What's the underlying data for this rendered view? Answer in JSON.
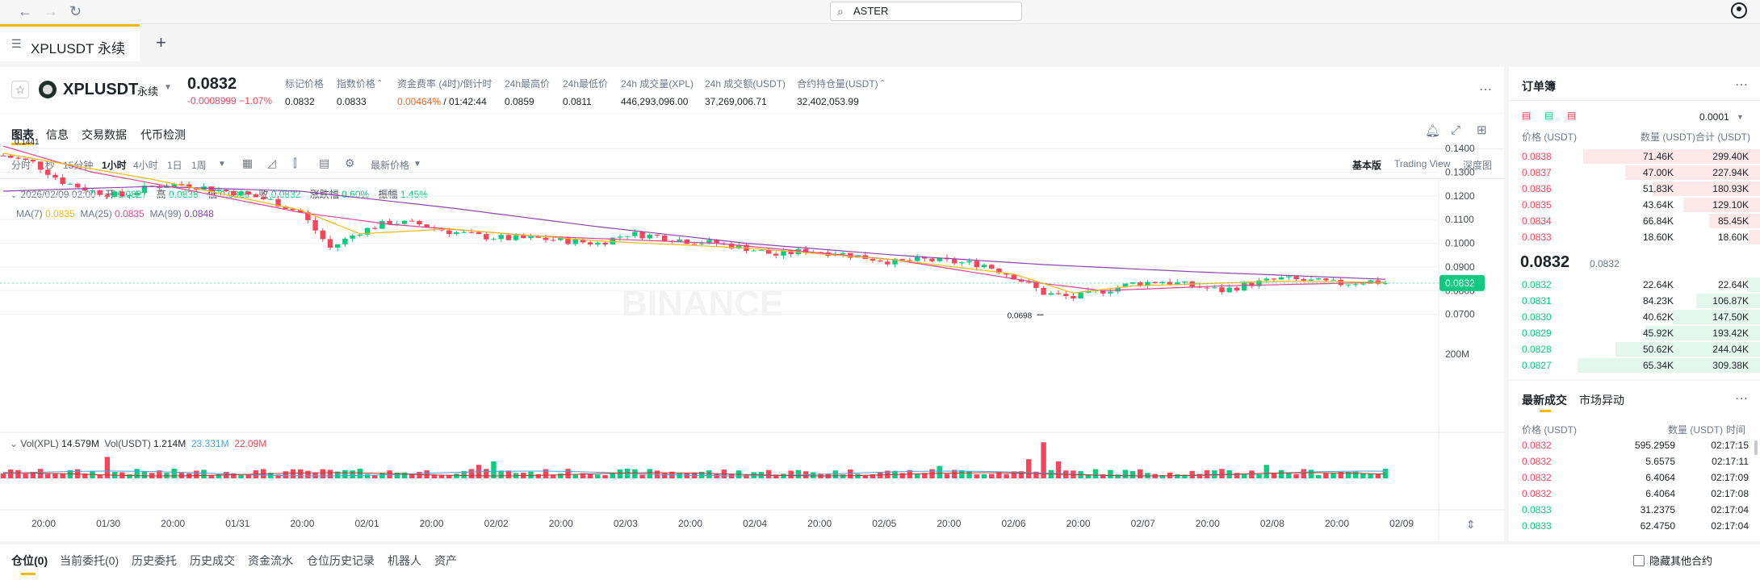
{
  "browser": {
    "url": "ASTER",
    "icons": [
      "back-icon",
      "forward-icon",
      "reload-icon",
      "search-icon",
      "user-icon"
    ]
  },
  "tab": {
    "label": "XPLUSDT 永续",
    "add": "+"
  },
  "header": {
    "symbol": "XPLUSDT",
    "type": "永续",
    "price": "0.0832",
    "change": "-0.0008999 −1.07%",
    "stats": [
      {
        "label": "标记价格",
        "value": "0.0832"
      },
      {
        "label": "指数价格 ˆ",
        "value": "0.0833"
      },
      {
        "label": "资金费率 (4时)/倒计时",
        "value_orange": "0.00464%",
        "value_rest": " / 01:42:44"
      },
      {
        "label": "24h最高价",
        "value": "0.0859"
      },
      {
        "label": "24h最低价",
        "value": "0.0811"
      },
      {
        "label": "24h 成交量(XPL)",
        "value": "446,293,096.00"
      },
      {
        "label": "24h 成交额(USDT)",
        "value": "37,269,006.71"
      },
      {
        "label": "合约持仓量(USDT) ˆ",
        "value": "32,402,053.99"
      }
    ]
  },
  "chart_tabs": [
    "图表",
    "信息",
    "交易数据",
    "代币检测"
  ],
  "intervals": [
    "分时",
    "1秒",
    "15分钟",
    "1小时",
    "4小时",
    "1日",
    "1周"
  ],
  "latest_price_label": "最新价格",
  "views": [
    "基本版",
    "Trading View",
    "深度图"
  ],
  "ohlc": {
    "date": "2026/02/09 02:00",
    "open_l": "开",
    "open": "0.0827",
    "high_l": "高",
    "high": "0.0838",
    "low_l": "低",
    "low": "0.0826",
    "close_l": "收",
    "close": "0.0832",
    "chg_l": "涨跌幅",
    "chg": "0.60%",
    "amp_l": "振幅",
    "amp": "1.45%"
  },
  "ma": {
    "ma7_l": "MA(7)",
    "ma7": "0.0835",
    "ma25_l": "MA(25)",
    "ma25": "0.0835",
    "ma99_l": "MA(99)",
    "ma99": "0.0848"
  },
  "vol": {
    "xpl_l": "Vol(XPL)",
    "xpl": "14.579M",
    "usdt_l": "Vol(USDT)",
    "usdt": "1.214M",
    "v1": "23.331M",
    "v2": "22.09M"
  },
  "chart_data": {
    "type": "candlestick",
    "price_ticks": [
      "0.1400",
      "0.1300",
      "0.1200",
      "0.1100",
      "0.1000",
      "0.0900",
      "0.0800",
      "0.0700"
    ],
    "ylim": [
      0.0658,
      0.1448
    ],
    "x_ticks": [
      "20:00",
      "01/30",
      "20:00",
      "01/31",
      "20:00",
      "02/01",
      "20:00",
      "02/02",
      "20:00",
      "02/03",
      "20:00",
      "02/04",
      "20:00",
      "02/05",
      "20:00",
      "02/06",
      "20:00",
      "02/07",
      "20:00",
      "02/08",
      "20:00",
      "02/09"
    ],
    "close_path": [
      [
        0,
        0.137
      ],
      [
        4,
        0.134
      ],
      [
        8,
        0.126
      ],
      [
        12,
        0.122
      ],
      [
        16,
        0.12
      ],
      [
        20,
        0.124
      ],
      [
        24,
        0.125
      ],
      [
        28,
        0.123
      ],
      [
        32,
        0.121
      ],
      [
        36,
        0.118
      ],
      [
        40,
        0.113
      ],
      [
        44,
        0.098
      ],
      [
        48,
        0.105
      ],
      [
        52,
        0.109
      ],
      [
        56,
        0.108
      ],
      [
        60,
        0.105
      ],
      [
        64,
        0.103
      ],
      [
        68,
        0.102
      ],
      [
        72,
        0.102
      ],
      [
        76,
        0.101
      ],
      [
        80,
        0.1
      ],
      [
        84,
        0.104
      ],
      [
        88,
        0.103
      ],
      [
        92,
        0.101
      ],
      [
        96,
        0.1
      ],
      [
        100,
        0.098
      ],
      [
        104,
        0.095
      ],
      [
        108,
        0.097
      ],
      [
        112,
        0.096
      ],
      [
        116,
        0.094
      ],
      [
        120,
        0.092
      ],
      [
        124,
        0.093
      ],
      [
        128,
        0.092
      ],
      [
        132,
        0.091
      ],
      [
        136,
        0.086
      ],
      [
        140,
        0.079
      ],
      [
        144,
        0.077
      ],
      [
        148,
        0.08
      ],
      [
        152,
        0.083
      ],
      [
        156,
        0.084
      ],
      [
        160,
        0.082
      ],
      [
        164,
        0.08
      ],
      [
        168,
        0.083
      ],
      [
        172,
        0.085
      ],
      [
        176,
        0.084
      ],
      [
        180,
        0.083
      ],
      [
        184,
        0.084
      ],
      [
        186,
        0.0832
      ]
    ],
    "ma7": [
      [
        0,
        0.138
      ],
      [
        20,
        0.127
      ],
      [
        40,
        0.114
      ],
      [
        48,
        0.104
      ],
      [
        60,
        0.106
      ],
      [
        80,
        0.101
      ],
      [
        100,
        0.098
      ],
      [
        120,
        0.093
      ],
      [
        136,
        0.087
      ],
      [
        144,
        0.079
      ],
      [
        152,
        0.082
      ],
      [
        172,
        0.084
      ],
      [
        186,
        0.0835
      ]
    ],
    "ma25": [
      [
        0,
        0.141
      ],
      [
        12,
        0.13
      ],
      [
        24,
        0.123
      ],
      [
        40,
        0.113
      ],
      [
        52,
        0.108
      ],
      [
        72,
        0.103
      ],
      [
        96,
        0.1
      ],
      [
        120,
        0.093
      ],
      [
        140,
        0.083
      ],
      [
        148,
        0.08
      ],
      [
        164,
        0.082
      ],
      [
        186,
        0.0835
      ]
    ],
    "ma99": [
      [
        0,
        0.122
      ],
      [
        20,
        0.124
      ],
      [
        40,
        0.122
      ],
      [
        60,
        0.115
      ],
      [
        80,
        0.107
      ],
      [
        100,
        0.1
      ],
      [
        120,
        0.095
      ],
      [
        140,
        0.091
      ],
      [
        160,
        0.088
      ],
      [
        186,
        0.0848
      ]
    ],
    "low_label": "0.0698",
    "high_label": "0.1441",
    "last_price_tag": "0.0832",
    "volume_ticks": [
      "200M"
    ],
    "volume_spikes": [
      [
        14,
        190
      ],
      [
        64,
        120
      ],
      [
        66,
        150
      ],
      [
        126,
        110
      ],
      [
        138,
        170
      ],
      [
        140,
        320
      ],
      [
        142,
        150
      ],
      [
        170,
        120
      ]
    ]
  },
  "orderbook": {
    "title": "订单簿",
    "precision": "0.0001",
    "cols": [
      "价格 (USDT)",
      "数量 (USDT)",
      "合计 (USDT)"
    ],
    "asks": [
      {
        "p": "0.0838",
        "q": "71.46K",
        "t": "299.40K",
        "d": 0.97
      },
      {
        "p": "0.0837",
        "q": "47.00K",
        "t": "227.94K",
        "d": 0.74
      },
      {
        "p": "0.0836",
        "q": "51.83K",
        "t": "180.93K",
        "d": 0.59
      },
      {
        "p": "0.0835",
        "q": "43.64K",
        "t": "129.10K",
        "d": 0.42
      },
      {
        "p": "0.0834",
        "q": "66.84K",
        "t": "85.45K",
        "d": 0.28
      },
      {
        "p": "0.0833",
        "q": "18.60K",
        "t": "18.60K",
        "d": 0.06
      }
    ],
    "mid": "0.0832",
    "mark": "0.0832",
    "bids": [
      {
        "p": "0.0832",
        "q": "22.64K",
        "t": "22.64K",
        "d": 0.07
      },
      {
        "p": "0.0831",
        "q": "84.23K",
        "t": "106.87K",
        "d": 0.35
      },
      {
        "p": "0.0830",
        "q": "40.62K",
        "t": "147.50K",
        "d": 0.48
      },
      {
        "p": "0.0829",
        "q": "45.92K",
        "t": "193.42K",
        "d": 0.63
      },
      {
        "p": "0.0828",
        "q": "50.62K",
        "t": "244.04K",
        "d": 0.79
      },
      {
        "p": "0.0827",
        "q": "65.34K",
        "t": "309.38K",
        "d": 1.0
      }
    ]
  },
  "trades": {
    "tabs": [
      "最新成交",
      "市场异动"
    ],
    "cols": [
      "价格 (USDT)",
      "数量 (USDT)",
      "时间"
    ],
    "rows": [
      {
        "p": "0.0832",
        "q": "595.2959",
        "t": "02:17:15",
        "s": "red"
      },
      {
        "p": "0.0832",
        "q": "5.6575",
        "t": "02:17:11",
        "s": "red"
      },
      {
        "p": "0.0832",
        "q": "6.4064",
        "t": "02:17:09",
        "s": "red"
      },
      {
        "p": "0.0832",
        "q": "6.4064",
        "t": "02:17:08",
        "s": "red"
      },
      {
        "p": "0.0833",
        "q": "31.2375",
        "t": "02:17:04",
        "s": "grn"
      },
      {
        "p": "0.0833",
        "q": "62.4750",
        "t": "02:17:04",
        "s": "grn"
      }
    ]
  },
  "bottom": {
    "tabs": [
      "仓位(0)",
      "当前委托(0)",
      "历史委托",
      "历史成交",
      "资金流水",
      "仓位历史记录",
      "机器人",
      "资产"
    ],
    "hide_label": "隐藏其他合约"
  },
  "colors": {
    "up": "#0ecb81",
    "down": "#f6465d",
    "accent": "#f0b90b",
    "ma7": "#f0b90b",
    "ma25": "#e84393",
    "ma99": "#8e44ad"
  }
}
